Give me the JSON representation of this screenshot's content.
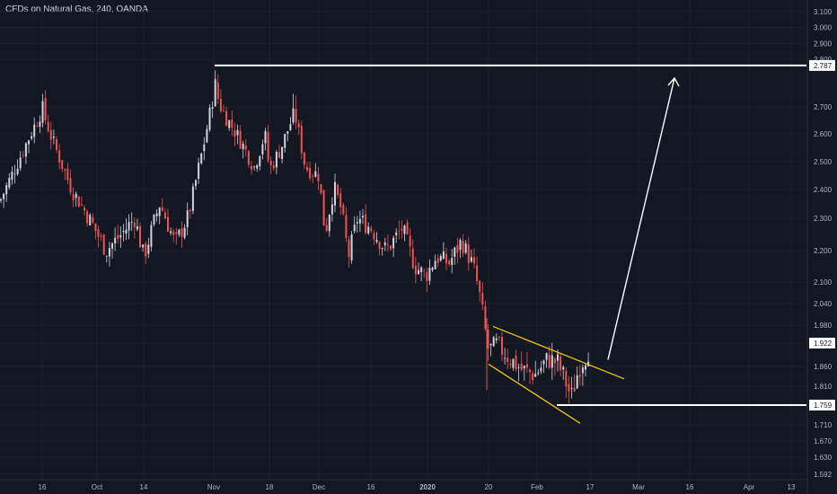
{
  "chart_title": "CFDs on Natural Gas, 240, OANDA",
  "colors": {
    "background": "#131722",
    "grid": "#1e222d",
    "up_candle": "#d1d4dc",
    "down_candle": "#ef5350",
    "channel": "#f0c419",
    "levels": "#ffffff",
    "arrow": "#ffffff",
    "axis_text": "#b2b5be"
  },
  "chart_data": {
    "type": "line",
    "title": "CFDs on Natural Gas, 240, OANDA",
    "xlabel": "",
    "ylabel": "",
    "ylim": [
      1.592,
      3.1
    ],
    "grid": false,
    "y_axis_position": "right",
    "y_tick_labels": [
      "3.100",
      "3.000",
      "2.900",
      "2.800",
      "2.700",
      "2.600",
      "2.500",
      "2.400",
      "2.300",
      "2.200",
      "2.100",
      "2.040",
      "1.980",
      "1.922",
      "1.860",
      "1.810",
      "1.759",
      "1.710",
      "1.670",
      "1.630",
      "1.592"
    ],
    "x_tick_labels": [
      "16",
      "Oct",
      "14",
      "Nov",
      "18",
      "Dec",
      "16",
      "2020",
      "20",
      "Feb",
      "17",
      "Mar",
      "16",
      "Apr",
      "13"
    ],
    "series": [
      {
        "kind": "candlestick-price-path",
        "x": [
          "Sep 9",
          "Sep 16",
          "Sep 20",
          "Sep 26",
          "Oct 1",
          "Oct 4",
          "Oct 8",
          "Oct 12",
          "Oct 14",
          "Oct 18",
          "Oct 22",
          "Oct 25",
          "Oct 29",
          "Nov 1",
          "Nov 4",
          "Nov 8",
          "Nov 12",
          "Nov 16",
          "Nov 18",
          "Nov 21",
          "Nov 24",
          "Nov 27",
          "Dec 1",
          "Dec 4",
          "Dec 7",
          "Dec 9",
          "Dec 11",
          "Dec 13",
          "Dec 16",
          "Dec 20",
          "Dec 24",
          "Dec 28",
          "Dec 31",
          "Jan 3",
          "Jan 8",
          "Jan 12",
          "Jan 16",
          "Jan 18",
          "Jan 20",
          "Jan 21",
          "Jan 23",
          "Jan 26",
          "Jan 29",
          "Feb 1",
          "Feb 4",
          "Feb 7",
          "Feb 10",
          "Feb 12",
          "Feb 14",
          "Feb 17"
        ],
        "y": [
          2.36,
          2.69,
          2.58,
          2.4,
          2.27,
          2.2,
          2.25,
          2.3,
          2.18,
          2.35,
          2.22,
          2.31,
          2.58,
          2.75,
          2.66,
          2.58,
          2.48,
          2.6,
          2.47,
          2.55,
          2.68,
          2.48,
          2.45,
          2.25,
          2.41,
          2.33,
          2.18,
          2.3,
          2.27,
          2.2,
          2.27,
          2.15,
          2.12,
          2.18,
          2.16,
          2.23,
          2.15,
          2.05,
          1.95,
          1.9,
          1.92,
          1.88,
          1.85,
          1.84,
          1.88,
          1.87,
          1.82,
          1.78,
          1.86,
          1.91
        ]
      }
    ],
    "annotations": {
      "resistance_level": 2.787,
      "support_level": 1.759,
      "current_price": 1.922,
      "descending_channel": {
        "upper": {
          "from": [
            "Jan 21",
            1.97
          ],
          "to": [
            "Feb 24",
            1.84
          ]
        },
        "lower": {
          "from": [
            "Jan 21",
            1.89
          ],
          "to": [
            "Feb 15",
            1.745
          ]
        }
      },
      "projection_arrow": {
        "from": [
          "Feb 25",
          1.89
        ],
        "to": [
          "Mar 12",
          2.79
        ]
      }
    }
  }
}
